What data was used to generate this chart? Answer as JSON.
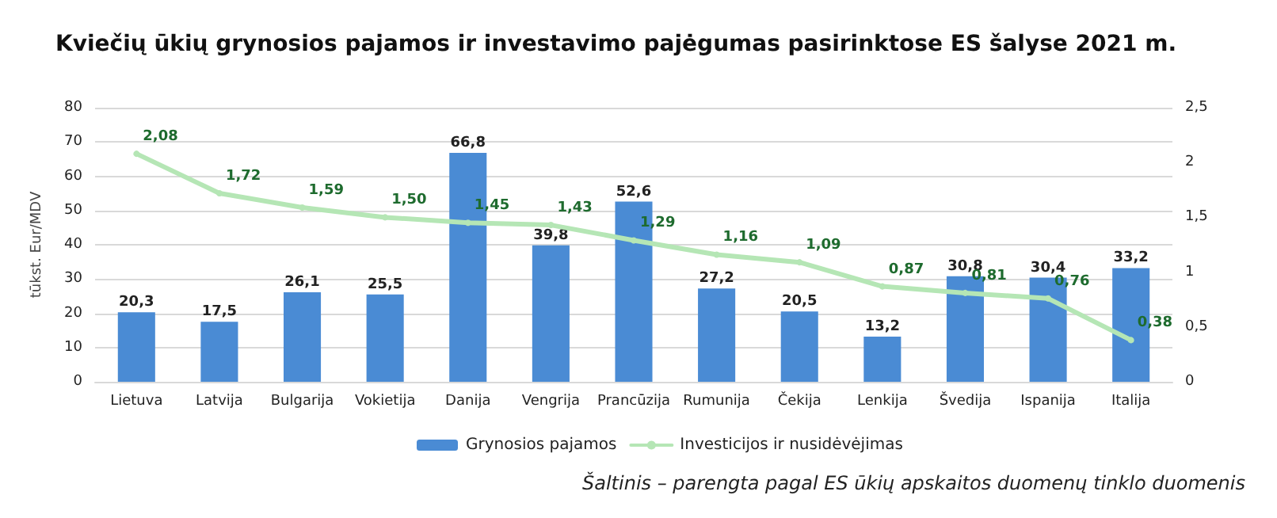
{
  "chart_data": {
    "type": "bar",
    "title": "Kviečių ūkių grynosios pajamos ir investavimo pajėgumas pasirinktose ES šalyse 2021 m.",
    "ylabel": "tūkst. Eur/MDV",
    "categories": [
      "Lietuva",
      "Latvija",
      "Bulgarija",
      "Vokietija",
      "Danija",
      "Vengrija",
      "Prancūzija",
      "Rumunija",
      "Čekija",
      "Lenkija",
      "Švedija",
      "Ispanija",
      "Italija"
    ],
    "series": [
      {
        "name": "Grynosios pajamos",
        "color": "#4a8bd4",
        "values": [
          20.3,
          17.5,
          26.1,
          25.5,
          66.8,
          39.8,
          52.6,
          27.2,
          20.5,
          13.2,
          30.8,
          30.4,
          33.2
        ],
        "value_labels": [
          "20,3",
          "17,5",
          "26,1",
          "25,5",
          "66,8",
          "39,8",
          "52,6",
          "27,2",
          "20,5",
          "13,2",
          "30,8",
          "30,4",
          "33,2"
        ]
      },
      {
        "name": "Investicijos ir nusidėvėjimas",
        "type": "line",
        "axis": "y2",
        "color": "#b5e6b5",
        "values": [
          2.08,
          1.72,
          1.59,
          1.5,
          1.45,
          1.43,
          1.29,
          1.16,
          1.09,
          0.87,
          0.81,
          0.76,
          0.38
        ],
        "value_labels": [
          "2,08",
          "1,72",
          "1,59",
          "1,50",
          "1,45",
          "1,43",
          "1,29",
          "1,16",
          "1,09",
          "0,87",
          "0,81",
          "0,76",
          "0,38"
        ]
      }
    ],
    "ylim": [
      0,
      80
    ],
    "yticks": [
      0,
      10,
      20,
      30,
      40,
      50,
      60,
      70,
      80
    ],
    "y2lim": [
      0,
      2.5
    ],
    "y2ticks": [
      0,
      {
        "value": 0.5,
        "label": "0,5"
      },
      1,
      {
        "value": 1.5,
        "label": "1,5"
      },
      2,
      {
        "value": 2.5,
        "label": "2,5"
      }
    ],
    "grid": "y",
    "legend": "bottom",
    "marker": "circle",
    "line_style": "solid",
    "annotations": [
      "Šaltinis – parengta pagal ES ūkių apskaitos duomenų tinklo duomenis"
    ]
  }
}
